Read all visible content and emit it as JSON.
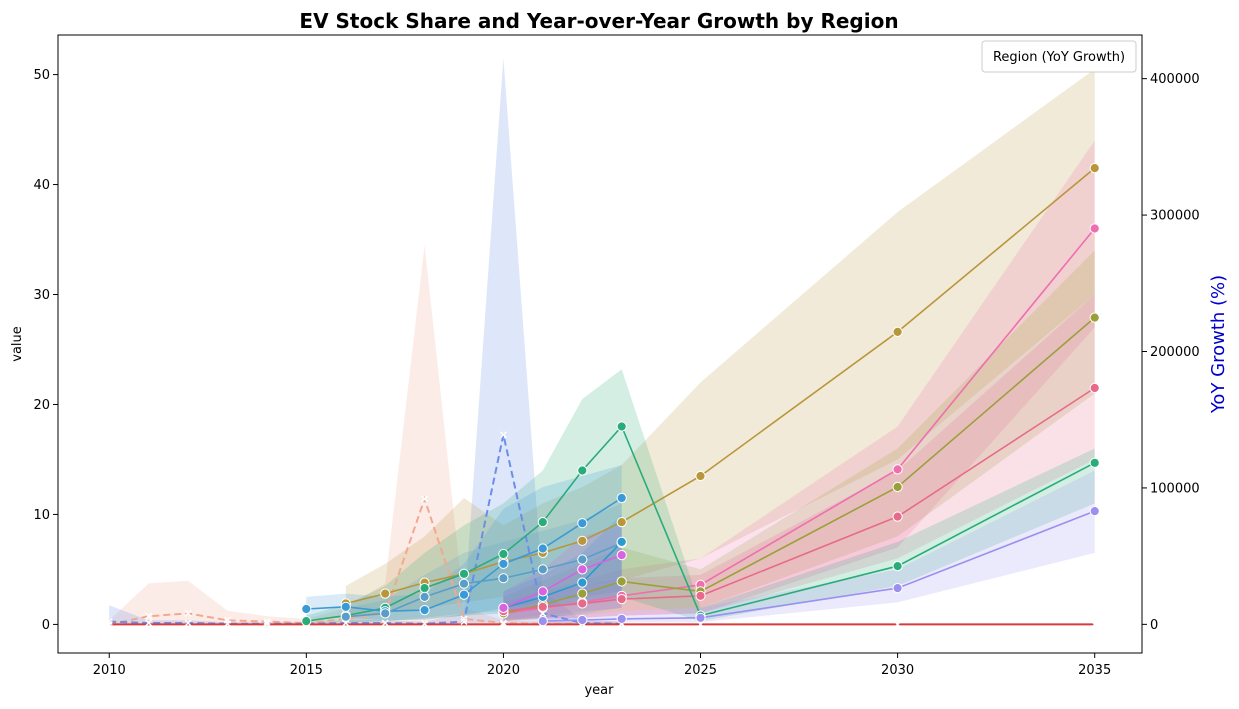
{
  "chart_data": {
    "type": "line",
    "title": "EV Stock Share and Year-over-Year Growth by Region",
    "xlabel": "year",
    "ylabel": "value",
    "y2label": "YoY Growth (%)",
    "xlim": [
      2008.7,
      2036.2
    ],
    "ylim": [
      -2.6,
      53.6
    ],
    "y2lim": [
      -21000,
      432000
    ],
    "xticks": [
      2010,
      2015,
      2020,
      2025,
      2030,
      2035
    ],
    "yticks": [
      0,
      10,
      20,
      30,
      40,
      50
    ],
    "y2ticks": [
      0,
      100000,
      200000,
      300000,
      400000
    ],
    "y2ticklabels": [
      "0",
      "100000",
      "200000",
      "300000",
      "400000"
    ],
    "legend": {
      "title": "Region (YoY Growth)",
      "placement": "top-right"
    },
    "grid": false,
    "series": [
      {
        "color": "#b8963a",
        "x": [
          2016,
          2017,
          2018,
          2019,
          2020,
          2021,
          2022,
          2023,
          2025,
          2030,
          2035
        ],
        "values": [
          1.9,
          2.8,
          3.8,
          4.6,
          5.7,
          6.5,
          7.6,
          9.3,
          13.5,
          26.6,
          41.5
        ],
        "lower": [
          0.6,
          1.0,
          1.5,
          2.0,
          2.5,
          3.0,
          3.5,
          4.0,
          6.0,
          15.0,
          30.0
        ],
        "upper": [
          3.5,
          5.5,
          8.0,
          11.5,
          9.0,
          11.0,
          12.5,
          14.5,
          22.0,
          37.5,
          50.5
        ]
      },
      {
        "color": "#ef6eb0",
        "x": [
          2020,
          2021,
          2022,
          2023,
          2025,
          2030,
          2035
        ],
        "values": [
          1.0,
          1.5,
          2.0,
          2.6,
          3.6,
          14.1,
          36.0
        ],
        "lower": [
          0.3,
          0.5,
          0.6,
          0.8,
          1.0,
          7.0,
          27.0
        ],
        "upper": [
          2.0,
          3.0,
          4.0,
          5.0,
          6.0,
          18.0,
          44.0
        ]
      },
      {
        "color": "#9aa039",
        "x": [
          2020,
          2021,
          2022,
          2023,
          2025,
          2030,
          2035
        ],
        "values": [
          1.0,
          1.8,
          2.8,
          3.9,
          3.0,
          12.5,
          27.9
        ],
        "lower": [
          0.3,
          0.6,
          0.9,
          1.2,
          1.5,
          8.0,
          21.0
        ],
        "upper": [
          2.5,
          4.0,
          5.5,
          7.0,
          5.0,
          16.0,
          34.0
        ]
      },
      {
        "color": "#e86a8a",
        "x": [
          2020,
          2021,
          2022,
          2023,
          2025,
          2030,
          2035
        ],
        "values": [
          1.2,
          1.6,
          1.9,
          2.3,
          2.6,
          9.8,
          21.5
        ],
        "lower": [
          0.3,
          0.5,
          0.6,
          0.8,
          1.0,
          6.0,
          15.0
        ],
        "upper": [
          2.5,
          3.0,
          3.5,
          4.2,
          4.5,
          14.0,
          30.0
        ]
      },
      {
        "color": "#2aac7a",
        "x": [
          2015,
          2016,
          2017,
          2018,
          2019,
          2020,
          2021,
          2022,
          2023,
          2025,
          2030,
          2035
        ],
        "values": [
          0.3,
          0.8,
          1.5,
          3.3,
          4.6,
          6.4,
          9.3,
          14.0,
          18.0,
          0.8,
          5.3,
          14.7
        ],
        "lower": [
          0.1,
          0.2,
          0.3,
          0.5,
          0.8,
          1.0,
          1.5,
          2.0,
          2.5,
          0.3,
          3.5,
          11.0
        ],
        "upper": [
          0.8,
          1.8,
          3.5,
          6.5,
          9.0,
          11.0,
          14.0,
          20.5,
          23.2,
          1.5,
          7.5,
          16.0
        ]
      },
      {
        "color": "#3a9ad8",
        "x": [
          2015,
          2016,
          2017,
          2018,
          2019,
          2020,
          2021,
          2022,
          2023
        ],
        "values": [
          1.4,
          1.6,
          1.2,
          1.3,
          2.7,
          5.5,
          6.9,
          9.2,
          11.5
        ],
        "lower": [
          0.5,
          0.6,
          0.4,
          0.4,
          0.8,
          1.5,
          2.0,
          2.5,
          3.0
        ],
        "upper": [
          2.5,
          2.8,
          2.5,
          2.8,
          5.5,
          10.5,
          12.5,
          13.5,
          14.5
        ]
      },
      {
        "color": "#5a9ec8",
        "x": [
          2016,
          2017,
          2018,
          2019,
          2020,
          2021,
          2022,
          2023
        ],
        "values": [
          0.7,
          1.0,
          2.5,
          3.7,
          4.2,
          5.0,
          5.9,
          7.4
        ],
        "lower": [
          0.2,
          0.3,
          0.6,
          1.0,
          1.2,
          1.5,
          1.8,
          2.2
        ],
        "upper": [
          1.5,
          2.2,
          4.5,
          6.5,
          7.5,
          8.5,
          9.5,
          11.0
        ]
      },
      {
        "color": "#2a9ad0",
        "x": [
          2020,
          2021,
          2022,
          2023
        ],
        "values": [
          1.5,
          2.5,
          3.8,
          7.5
        ],
        "lower": [
          0.4,
          0.6,
          1.0,
          1.5
        ],
        "upper": [
          3.0,
          4.5,
          6.5,
          10.0
        ]
      },
      {
        "color": "#d862e0",
        "x": [
          2020,
          2021,
          2022,
          2023
        ],
        "values": [
          1.5,
          3.0,
          5.0,
          6.3
        ],
        "lower": [
          0.4,
          0.8,
          1.2,
          1.5
        ],
        "upper": [
          3.0,
          5.0,
          8.0,
          9.0
        ]
      },
      {
        "color": "#9b8ff0",
        "x": [
          2021,
          2022,
          2023,
          2025,
          2030,
          2035
        ],
        "values": [
          0.3,
          0.4,
          0.5,
          0.6,
          3.3,
          10.3
        ],
        "lower": [
          0.1,
          0.1,
          0.2,
          0.2,
          2.0,
          6.5
        ],
        "upper": [
          0.8,
          1.0,
          1.2,
          1.5,
          5.0,
          14.0
        ]
      }
    ],
    "growth_series": [
      {
        "color": "#f2a890",
        "dashed": true,
        "x": [
          2010,
          2011,
          2012,
          2013,
          2014,
          2015,
          2016,
          2017,
          2018,
          2019,
          2020,
          2021,
          2022,
          2023
        ],
        "values": [
          0,
          6000,
          8000,
          3000,
          2000,
          1000,
          4000,
          8000,
          92000,
          4000,
          1000,
          500,
          500,
          500
        ],
        "lower": [
          0,
          0,
          0,
          0,
          0,
          0,
          0,
          0,
          0,
          0,
          0,
          0,
          0,
          0
        ],
        "upper": [
          3000,
          30000,
          32000,
          10000,
          6000,
          4000,
          12000,
          30000,
          278000,
          12000,
          3000,
          2000,
          2000,
          2000
        ]
      },
      {
        "color": "#6a8ee8",
        "dashed": true,
        "x": [
          2010,
          2011,
          2012,
          2013,
          2014,
          2015,
          2016,
          2017,
          2018,
          2019,
          2020,
          2021,
          2022,
          2023
        ],
        "values": [
          2000,
          1000,
          1000,
          500,
          500,
          500,
          1000,
          1000,
          500,
          2000,
          139000,
          8000,
          1000,
          500
        ],
        "lower": [
          0,
          0,
          0,
          0,
          0,
          0,
          0,
          0,
          0,
          0,
          0,
          0,
          0,
          0
        ],
        "upper": [
          14000,
          3000,
          3000,
          1500,
          1500,
          1500,
          3000,
          3000,
          2000,
          8000,
          415000,
          25000,
          3000,
          2000
        ]
      },
      {
        "color": "#d63a3a",
        "dashed": false,
        "x": [
          2010,
          2015,
          2020,
          2025,
          2030,
          2035
        ],
        "values": [
          0,
          0,
          0,
          0,
          0,
          0
        ],
        "lower": [
          0,
          0,
          0,
          0,
          0,
          0
        ],
        "upper": [
          0,
          0,
          0,
          0,
          0,
          0
        ]
      }
    ]
  }
}
